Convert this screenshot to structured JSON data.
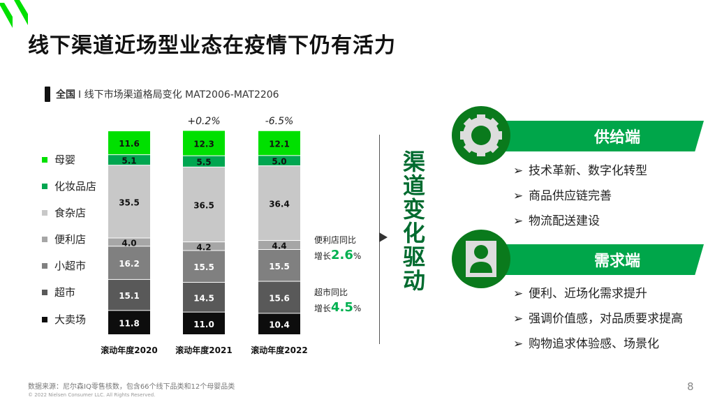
{
  "title": "线下渠道近场型业态在疫情下仍有活力",
  "subtitle": {
    "bold": "全国",
    "text": "I 线下市场渠道格局变化 MAT2006-MAT2206"
  },
  "chart_data": {
    "type": "bar",
    "stacked": true,
    "categories": [
      "滚动年度2020",
      "滚动年度2021",
      "滚动年度2022"
    ],
    "series": [
      {
        "name": "母婴",
        "color": "#00e000",
        "values": [
          11.6,
          12.3,
          12.1
        ]
      },
      {
        "name": "化妆品店",
        "color": "#00a650",
        "values": [
          5.1,
          5.5,
          5.0
        ]
      },
      {
        "name": "食杂店",
        "color": "#c8c8c8",
        "values": [
          35.5,
          36.5,
          36.4
        ]
      },
      {
        "name": "便利店",
        "color": "#a6a6a6",
        "values": [
          4.0,
          4.2,
          4.4
        ]
      },
      {
        "name": "小超市",
        "color": "#808080",
        "values": [
          16.2,
          15.5,
          15.5
        ]
      },
      {
        "name": "超市",
        "color": "#595959",
        "values": [
          15.1,
          14.5,
          15.6
        ]
      },
      {
        "name": "大卖场",
        "color": "#0d0d0d",
        "values": [
          11.8,
          11.0,
          10.4
        ]
      }
    ],
    "annotations": [
      "",
      "+0.2%",
      "-6.5%"
    ],
    "ylim": [
      0,
      100
    ]
  },
  "notes": [
    {
      "line1": "便利店同比",
      "prefix": "增长",
      "value": "2.6",
      "unit": "%"
    },
    {
      "line1": "超市同比",
      "prefix": "增长",
      "value": "4.5",
      "unit": "%"
    }
  ],
  "driver_title": "渠道变化驱动",
  "supply": {
    "label": "供给端",
    "items": [
      "技术革新、数字化转型",
      "商品供应链完善",
      "物流配送建设"
    ]
  },
  "demand": {
    "label": "需求端",
    "items": [
      "便利、近场化需求提升",
      "强调价值感，对品质要求提高",
      "购物追求体验感、场景化"
    ]
  },
  "source": "数据来源：尼尔森IQ零售核数，包含66个线下品类和12个母婴品类",
  "copyright": "© 2022 Nielsen Consumer LLC. All Rights Reserved.",
  "page": "8"
}
